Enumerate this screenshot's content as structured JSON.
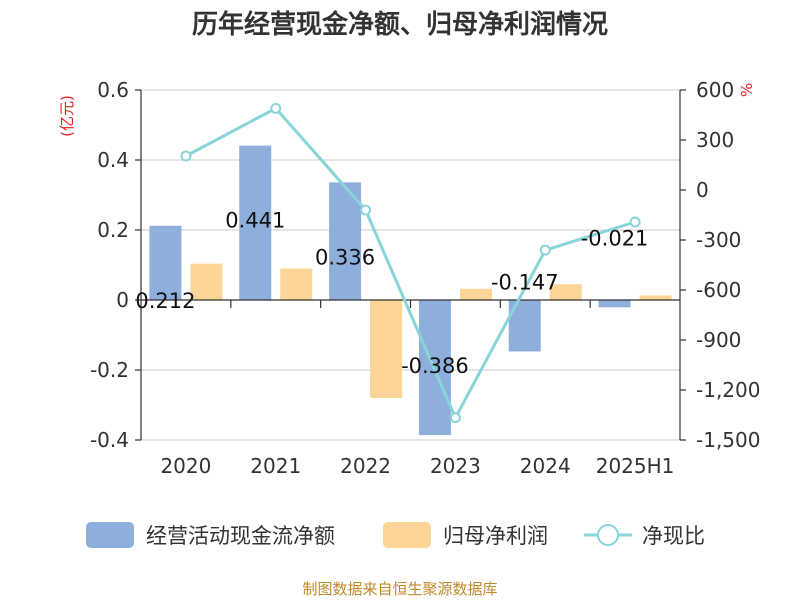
{
  "title": "历年经营现金净额、归母净利润情况",
  "source": "制图数据来自恒生聚源数据库",
  "chart_data": {
    "type": "bar",
    "title": "历年经营现金净额、归母净利润情况",
    "categories": [
      "2020",
      "2021",
      "2022",
      "2023",
      "2024",
      "2025H1"
    ],
    "y_left_unit": "(亿元)",
    "y_right_unit": "%",
    "y_left_range": [
      -0.4,
      0.6
    ],
    "y_left_ticks": [
      "0.6",
      "0.4",
      "0.2",
      "0",
      "-0.2",
      "-0.4"
    ],
    "y_left_tick_values": [
      0.6,
      0.4,
      0.2,
      0,
      -0.2,
      -0.4
    ],
    "y_right_range": [
      -1500,
      600
    ],
    "y_right_ticks": [
      "600",
      "300",
      "0",
      "-300",
      "-600",
      "-900",
      "-1,200",
      "-1,500"
    ],
    "y_right_tick_values": [
      600,
      300,
      0,
      -300,
      -600,
      -900,
      -1200,
      -1500
    ],
    "series": [
      {
        "name": "经营活动现金流净额",
        "type": "bar",
        "axis": "left",
        "color": "#8eaedc",
        "values": [
          0.212,
          0.441,
          0.336,
          -0.386,
          -0.147,
          -0.021
        ],
        "labels": [
          "0.212",
          "0.441",
          "0.336",
          "-0.386",
          "-0.147",
          "-0.021"
        ]
      },
      {
        "name": "归母净利润",
        "type": "bar",
        "axis": "left",
        "color": "#fdd596",
        "values": [
          0.104,
          0.09,
          -0.28,
          0.032,
          0.045,
          0.013
        ]
      },
      {
        "name": "净现比",
        "type": "line",
        "axis": "right",
        "color": "#88d4d9",
        "values": [
          204,
          490,
          -120,
          -1366,
          -361,
          -192
        ]
      }
    ],
    "grid": true,
    "legend_position": "bottom"
  }
}
